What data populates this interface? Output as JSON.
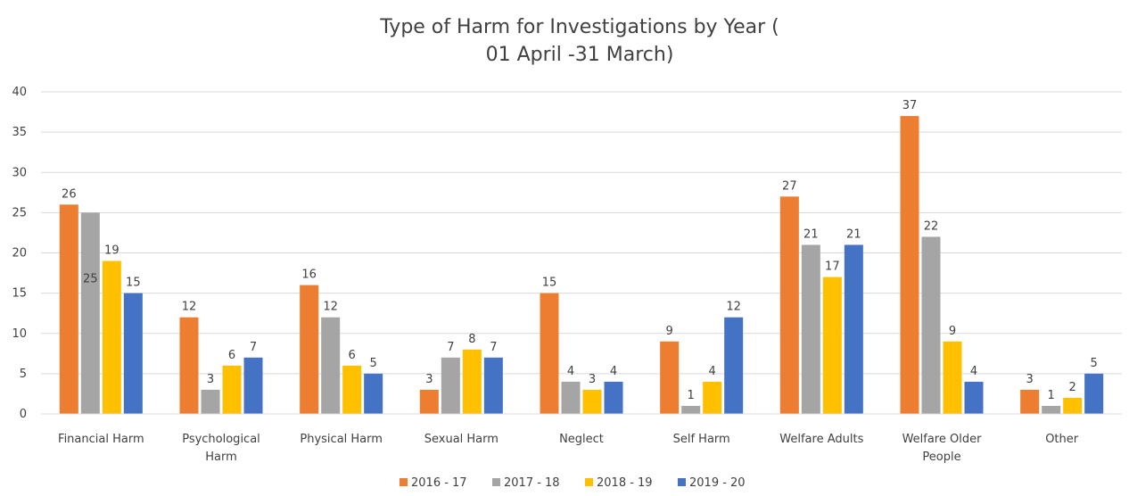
{
  "chart_data": {
    "type": "bar",
    "title_lines": [
      "Type of Harm for Investigations by Year (",
      "01 April -31 March)"
    ],
    "categories": [
      [
        "Financial Harm"
      ],
      [
        "Psychological",
        "Harm"
      ],
      [
        "Physical Harm"
      ],
      [
        "Sexual Harm"
      ],
      [
        "Neglect"
      ],
      [
        "Self Harm"
      ],
      [
        "Welfare Adults"
      ],
      [
        "Welfare Older",
        "People"
      ],
      [
        "Other"
      ]
    ],
    "series": [
      {
        "name": "2016 - 17",
        "color": "#ED7D31",
        "values": [
          26,
          12,
          16,
          3,
          15,
          9,
          27,
          37,
          3
        ]
      },
      {
        "name": "2017 - 18",
        "color": "#A5A5A5",
        "values": [
          25,
          3,
          12,
          7,
          4,
          1,
          21,
          22,
          1
        ]
      },
      {
        "name": "2018 - 19",
        "color": "#FFC000",
        "values": [
          19,
          6,
          6,
          8,
          3,
          4,
          17,
          9,
          2
        ]
      },
      {
        "name": "2019 - 20",
        "color": "#4472C4",
        "values": [
          15,
          7,
          5,
          7,
          4,
          12,
          21,
          4,
          5
        ]
      }
    ],
    "ylim": [
      0,
      40
    ],
    "yticks": [
      0,
      5,
      10,
      15,
      20,
      25,
      30,
      35,
      40
    ],
    "grid": true,
    "legend_position": "bottom"
  }
}
